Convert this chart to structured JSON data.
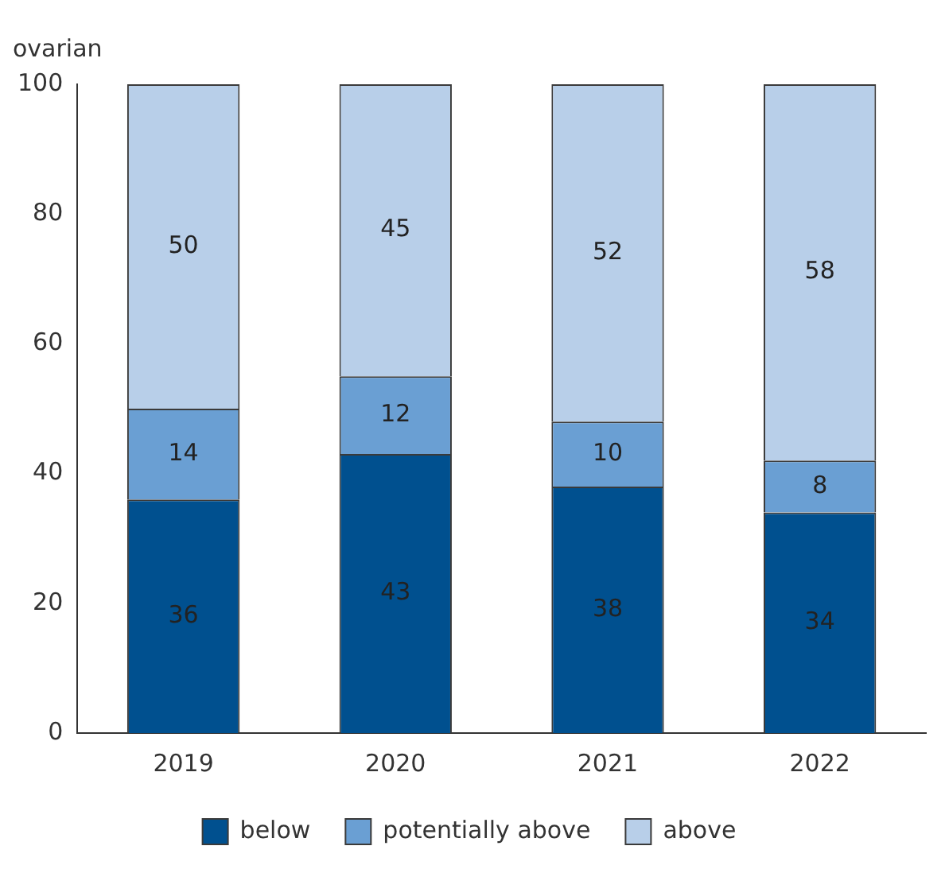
{
  "chart_data": {
    "type": "bar",
    "ylabel": "ovarian",
    "categories": [
      "2019",
      "2020",
      "2021",
      "2022"
    ],
    "series": [
      {
        "name": "below",
        "color": "#00508f",
        "values": [
          36,
          43,
          38,
          34
        ]
      },
      {
        "name": "potentially above",
        "color": "#6a9fd3",
        "values": [
          14,
          12,
          10,
          8
        ]
      },
      {
        "name": "above",
        "color": "#b8cfe9",
        "values": [
          50,
          45,
          52,
          58
        ]
      }
    ],
    "stacked": true,
    "ylim": [
      0,
      100
    ],
    "yticks": [
      0,
      20,
      40,
      60,
      80,
      100
    ],
    "grid": false,
    "legend": "bottom",
    "data_labels": true
  }
}
